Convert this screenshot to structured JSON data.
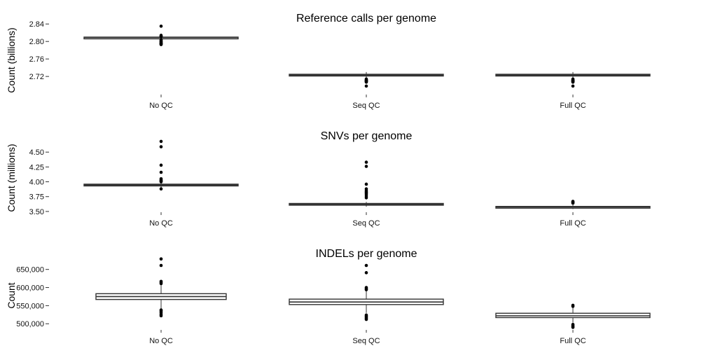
{
  "chart_data": [
    {
      "type": "box",
      "title": "Reference calls per genome",
      "ylabel": "Count (billions)",
      "ylim": [
        2.685,
        2.85
      ],
      "yticks": [
        2.72,
        2.76,
        2.8,
        2.84
      ],
      "ytick_labels": [
        "2.72",
        "2.76",
        "2.80",
        "2.84"
      ],
      "categories": [
        "No QC",
        "Seq QC",
        "Full QC"
      ],
      "boxes": [
        {
          "q1": 2.808,
          "median": 2.809,
          "q3": 2.81,
          "whisker_low": 2.806,
          "whisker_high": 2.812,
          "outliers": [
            2.835,
            2.814,
            2.812,
            2.811,
            2.804,
            2.802,
            2.8,
            2.799,
            2.797,
            2.796,
            2.795,
            2.794,
            2.793
          ]
        },
        {
          "q1": 2.721,
          "median": 2.723,
          "q3": 2.725,
          "whisker_low": 2.716,
          "whisker_high": 2.73,
          "outliers": [
            2.714,
            2.712,
            2.711,
            2.71,
            2.709,
            2.708,
            2.707,
            2.698
          ]
        },
        {
          "q1": 2.721,
          "median": 2.723,
          "q3": 2.725,
          "whisker_low": 2.716,
          "whisker_high": 2.73,
          "outliers": [
            2.714,
            2.712,
            2.711,
            2.71,
            2.709,
            2.708,
            2.707,
            2.698
          ]
        }
      ]
    },
    {
      "type": "box",
      "title": "SNVs per genome",
      "ylabel": "Count (millions)",
      "ylim": [
        3.44,
        4.75
      ],
      "yticks": [
        3.5,
        3.75,
        4.0,
        4.25,
        4.5
      ],
      "ytick_labels": [
        "3.50",
        "3.75",
        "4.00",
        "4.25",
        "4.50"
      ],
      "categories": [
        "No QC",
        "Seq QC",
        "Full QC"
      ],
      "boxes": [
        {
          "q1": 3.93,
          "median": 3.945,
          "q3": 3.96,
          "whisker_low": 3.9,
          "whisker_high": 3.99,
          "outliers": [
            4.68,
            4.59,
            4.28,
            4.16,
            4.05,
            4.03,
            4.02,
            4.01,
            4.0,
            3.88
          ]
        },
        {
          "q1": 3.61,
          "median": 3.62,
          "q3": 3.635,
          "whisker_low": 3.58,
          "whisker_high": 3.66,
          "outliers": [
            4.33,
            4.26,
            3.96,
            3.88,
            3.85,
            3.83,
            3.81,
            3.79,
            3.76,
            3.73
          ]
        },
        {
          "q1": 3.565,
          "median": 3.575,
          "q3": 3.585,
          "whisker_low": 3.54,
          "whisker_high": 3.61,
          "outliers": [
            3.67,
            3.66,
            3.65,
            3.64
          ]
        }
      ]
    },
    {
      "type": "box",
      "title": "INDELs per genome",
      "ylabel": "Count",
      "ylim": [
        485000,
        690000
      ],
      "yticks": [
        500000,
        550000,
        600000,
        650000
      ],
      "ytick_labels": [
        "500,000",
        "550,000",
        "600,000",
        "650,000"
      ],
      "categories": [
        "No QC",
        "Seq QC",
        "Full QC"
      ],
      "boxes": [
        {
          "q1": 567000,
          "median": 575000,
          "q3": 583000,
          "whisker_low": 542000,
          "whisker_high": 607000,
          "outliers": [
            679000,
            661000,
            617000,
            614000,
            611000,
            538000,
            535000,
            531000,
            526000,
            522000
          ]
        },
        {
          "q1": 553000,
          "median": 560000,
          "q3": 568000,
          "whisker_low": 530000,
          "whisker_high": 590000,
          "outliers": [
            661000,
            641000,
            600000,
            597000,
            594000,
            524000,
            521000,
            518000,
            515000,
            512000
          ]
        },
        {
          "q1": 517000,
          "median": 522000,
          "q3": 529000,
          "whisker_low": 503000,
          "whisker_high": 545000,
          "outliers": [
            551000,
            548000,
            498000,
            495000,
            492000,
            490000
          ]
        }
      ]
    }
  ],
  "colors": {
    "box_fill": "#ffffff",
    "box_stroke": "#333333",
    "point": "#000000"
  }
}
